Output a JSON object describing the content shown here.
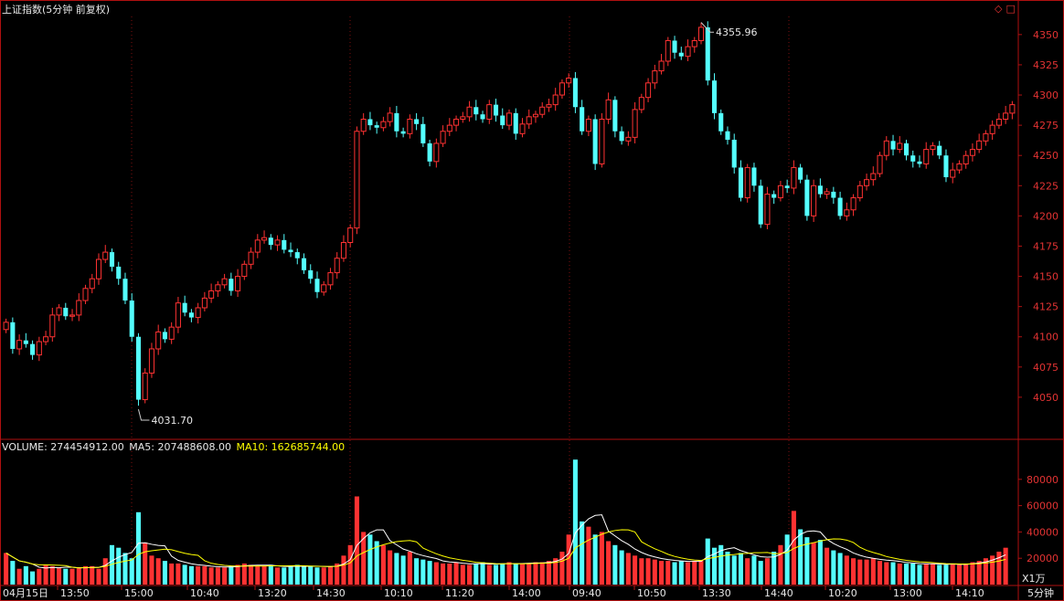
{
  "header": {
    "title": "上证指数(5分钟 前复权)",
    "period": "5分钟"
  },
  "volume_legend": {
    "volume_label": "VOLUME: 274454912.00",
    "ma5_label": "MA5: 207488608.00",
    "ma10_label": "MA10: 162685744.00"
  },
  "colors": {
    "up": "#ff3232",
    "down": "#54ffff",
    "ma5": "#ffffff",
    "ma10": "#ffff00",
    "axis": "#b01010",
    "text": "#e33333"
  },
  "annotations": {
    "high": "4355.96",
    "low": "4031.70"
  },
  "volume_unit": "X1万",
  "chart_data": [
    {
      "type": "candlestick",
      "title": "上证指数(5分钟 前复权)",
      "ylim": [
        4025,
        4365
      ],
      "yticks": [
        "4050",
        "4075",
        "4100",
        "4125",
        "4150",
        "4175",
        "4200",
        "4225",
        "4250",
        "4275",
        "4300",
        "4325",
        "4350"
      ],
      "xticks": [
        "04月15日",
        "13:50",
        "15:00",
        "10:40",
        "13:20",
        "14:30",
        "10:10",
        "11:20",
        "14:00",
        "09:40",
        "10:50",
        "13:30",
        "14:40",
        "10:20",
        "13:00",
        "14:10"
      ],
      "high_label": "4355.96",
      "low_label": "4031.70",
      "close": [
        4112,
        4090,
        4097,
        4094,
        4085,
        4096,
        4100,
        4118,
        4124,
        4117,
        4118,
        4130,
        4140,
        4148,
        4164,
        4170,
        4158,
        4148,
        4130,
        4100,
        4048,
        4070,
        4090,
        4104,
        4098,
        4108,
        4128,
        4120,
        4116,
        4124,
        4132,
        4138,
        4143,
        4148,
        4138,
        4150,
        4160,
        4170,
        4180,
        4182,
        4176,
        4180,
        4172,
        4170,
        4165,
        4155,
        4148,
        4137,
        4143,
        4153,
        4165,
        4178,
        4190,
        4270,
        4280,
        4275,
        4273,
        4278,
        4285,
        4270,
        4268,
        4280,
        4276,
        4260,
        4245,
        4260,
        4270,
        4275,
        4280,
        4282,
        4290,
        4284,
        4280,
        4292,
        4283,
        4275,
        4285,
        4268,
        4276,
        4282,
        4284,
        4290,
        4292,
        4300,
        4310,
        4314,
        4290,
        4270,
        4280,
        4243,
        4280,
        4296,
        4270,
        4262,
        4265,
        4288,
        4298,
        4310,
        4320,
        4328,
        4345,
        4335,
        4332,
        4340,
        4345,
        4356,
        4312,
        4285,
        4270,
        4263,
        4240,
        4215,
        4240,
        4225,
        4193,
        4218,
        4215,
        4225,
        4223,
        4240,
        4230,
        4200,
        4225,
        4218,
        4220,
        4215,
        4200,
        4205,
        4215,
        4225,
        4230,
        4235,
        4250,
        4262,
        4255,
        4260,
        4250,
        4245,
        4243,
        4255,
        4258,
        4250,
        4232,
        4238,
        4243,
        4250,
        4255,
        4262,
        4268,
        4275,
        4280,
        4285,
        4292
      ],
      "series": [
        {
          "name": "VOLUME",
          "values": [
            24,
            18,
            12,
            14,
            10,
            12,
            15,
            14,
            13,
            12,
            12,
            13,
            14,
            14,
            12,
            20,
            30,
            28,
            24,
            20,
            55,
            32,
            22,
            20,
            18,
            16,
            16,
            15,
            14,
            14,
            14,
            13,
            13,
            13,
            14,
            15,
            16,
            15,
            14,
            14,
            15,
            13,
            13,
            14,
            15,
            14,
            14,
            13,
            13,
            14,
            16,
            22,
            30,
            67,
            40,
            38,
            33,
            30,
            26,
            24,
            22,
            25,
            20,
            19,
            18,
            17,
            16,
            16,
            17,
            15,
            15,
            16,
            17,
            15,
            15,
            16,
            17,
            16,
            16,
            16,
            17,
            17,
            18,
            20,
            25,
            38,
            95,
            48,
            44,
            38,
            40,
            33,
            30,
            26,
            24,
            22,
            20,
            20,
            19,
            18,
            18,
            17,
            18,
            17,
            18,
            18,
            35,
            28,
            30,
            25,
            22,
            24,
            20,
            22,
            18,
            20,
            25,
            30,
            38,
            56,
            42,
            36,
            32,
            34,
            28,
            26,
            24,
            22,
            20,
            19,
            19,
            20,
            18,
            17,
            17,
            16,
            16,
            16,
            15,
            16,
            16,
            15,
            15,
            16,
            15,
            16,
            17,
            18,
            20,
            22,
            25,
            28
          ]
        },
        {
          "name": "MA5",
          "values": []
        },
        {
          "name": "MA10",
          "values": []
        }
      ],
      "vol_ylim": [
        0,
        100000
      ],
      "vol_yticks": [
        "20000",
        "40000",
        "60000",
        "80000"
      ]
    }
  ]
}
